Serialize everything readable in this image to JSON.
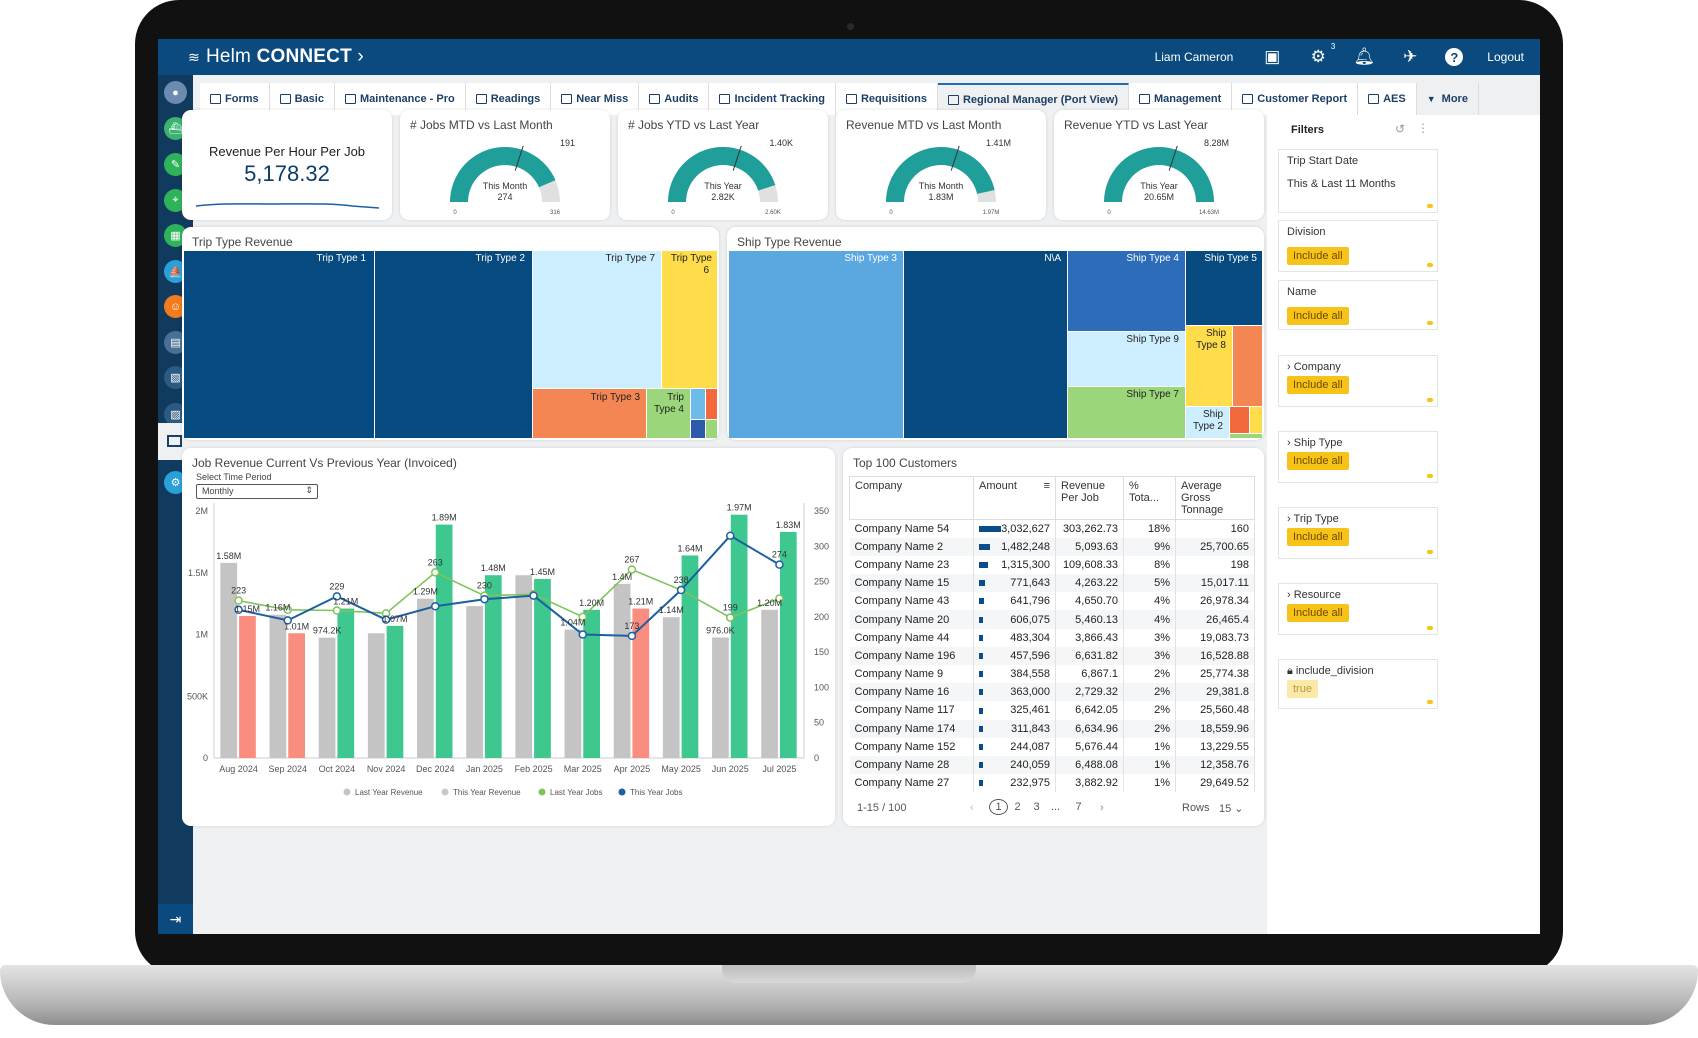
{
  "app": {
    "logo_prefix": "Helm",
    "logo_main": "CONNECT",
    "user": "Liam Cameron",
    "settings_badge": "3",
    "logout": "Logout"
  },
  "tabs": [
    {
      "label": "Forms"
    },
    {
      "label": "Basic"
    },
    {
      "label": "Maintenance - Pro"
    },
    {
      "label": "Readings"
    },
    {
      "label": "Near Miss"
    },
    {
      "label": "Audits"
    },
    {
      "label": "Incident Tracking"
    },
    {
      "label": "Requisitions"
    },
    {
      "label": "Regional Manager (Port View)"
    },
    {
      "label": "Management"
    },
    {
      "label": "Customer Report"
    },
    {
      "label": "AES"
    }
  ],
  "more_tab": "More",
  "kpi": {
    "title": "Revenue Per Hour Per Job",
    "value": "5,178.32"
  },
  "gauges": [
    {
      "title": "# Jobs MTD vs Last Month",
      "sub": "This Month",
      "value": "274",
      "target": "191",
      "min": "0",
      "max": "316",
      "fraction": 0.87
    },
    {
      "title": "# Jobs YTD vs Last Year",
      "sub": "This Year",
      "value": "2.82K",
      "target": "1.40K",
      "min": "0",
      "max": "2.60K",
      "fraction": 0.9
    },
    {
      "title": "Revenue MTD vs Last Month",
      "sub": "This Month",
      "value": "1.83M",
      "target": "1.41M",
      "min": "0",
      "max": "1.97M",
      "fraction": 0.93
    },
    {
      "title": "Revenue YTD vs Last Year",
      "sub": "This Year",
      "value": "20.65M",
      "target": "8.28M",
      "min": "0",
      "max": "14.63M",
      "fraction": 1.0
    }
  ],
  "trip_treemap": {
    "title": "Trip Type Revenue",
    "labels": [
      "Trip Type 1",
      "Trip Type 2",
      "Trip Type 7",
      "Trip Type",
      "6",
      "Trip Type 3",
      "Trip",
      "Type 4"
    ]
  },
  "ship_treemap": {
    "title": "Ship Type Revenue",
    "labels": [
      "Ship Type 3",
      "N\\A",
      "Ship Type 4",
      "Ship Type 5",
      "Ship Type 9",
      "Ship",
      "Type 8",
      "Ship Type 7",
      "Ship",
      "Type 2"
    ]
  },
  "job_chart": {
    "title": "Job Revenue Current Vs Previous Year (Invoiced)",
    "select_label": "Select Time Period",
    "select_value": "Monthly"
  },
  "chart_data": {
    "type": "bar",
    "categories": [
      "Aug 2024",
      "Sep 2024",
      "Oct 2024",
      "Nov 2024",
      "Dec 2024",
      "Jan 2025",
      "Feb 2025",
      "Mar 2025",
      "Apr 2025",
      "May 2025",
      "Jun 2025",
      "Jul 2025"
    ],
    "series": [
      {
        "name": "Last Year Revenue",
        "type": "bar",
        "axis": "left",
        "values": [
          1580000,
          1160000,
          974200,
          1010000,
          1290000,
          1230000,
          1480000,
          1040000,
          1410000,
          1140000,
          976000,
          1200000
        ]
      },
      {
        "name": "This Year Revenue",
        "type": "bar",
        "axis": "left",
        "values": [
          1150000,
          1010000,
          1210000,
          1070000,
          1890000,
          1480000,
          1450000,
          1200000,
          1210000,
          1640000,
          1970000,
          1830000
        ]
      },
      {
        "name": "Last Year Jobs",
        "type": "line",
        "axis": "right",
        "values": [
          223,
          210,
          209,
          205,
          263,
          230,
          232,
          200,
          267,
          238,
          199,
          226
        ]
      },
      {
        "name": "This Year Jobs",
        "type": "line",
        "axis": "right",
        "values": [
          210,
          195,
          229,
          196,
          215,
          225,
          230,
          175,
          173,
          238,
          315,
          274
        ]
      }
    ],
    "left_ticks": [
      "2M",
      "1.5M",
      "1M",
      "500K",
      "0"
    ],
    "right_ticks": [
      "350",
      "300",
      "250",
      "200",
      "150",
      "100",
      "50",
      "0"
    ],
    "ylim": [
      0,
      2000000
    ],
    "y2lim": [
      0,
      350
    ],
    "bar_labels": [
      {
        "series": 0,
        "i": 0,
        "text": "1.58M"
      },
      {
        "series": 1,
        "i": 0,
        "text": "1.15M"
      },
      {
        "series": 0,
        "i": 1,
        "text": "1.16M"
      },
      {
        "series": 1,
        "i": 1,
        "text": "1.01M"
      },
      {
        "series": 0,
        "i": 2,
        "text": "974.2K"
      },
      {
        "series": 1,
        "i": 2,
        "text": "1.21M"
      },
      {
        "series": 1,
        "i": 3,
        "text": "1.07M"
      },
      {
        "series": 0,
        "i": 4,
        "text": "1.29M"
      },
      {
        "series": 1,
        "i": 4,
        "text": "1.89M"
      },
      {
        "series": 1,
        "i": 5,
        "text": "1.48M"
      },
      {
        "series": 1,
        "i": 6,
        "text": "1.45M"
      },
      {
        "series": 0,
        "i": 7,
        "text": "1.04M"
      },
      {
        "series": 1,
        "i": 7,
        "text": "1.20M"
      },
      {
        "series": 0,
        "i": 8,
        "text": "1.4M"
      },
      {
        "series": 1,
        "i": 8,
        "text": "1.21M"
      },
      {
        "series": 0,
        "i": 9,
        "text": "1.14M"
      },
      {
        "series": 1,
        "i": 9,
        "text": "1.64M"
      },
      {
        "series": 0,
        "i": 10,
        "text": "976.0K"
      },
      {
        "series": 1,
        "i": 10,
        "text": "1.97M"
      },
      {
        "series": 0,
        "i": 11,
        "text": "1.20M"
      },
      {
        "series": 1,
        "i": 11,
        "text": "1.83M"
      }
    ],
    "point_labels": [
      {
        "series": 2,
        "i": 0,
        "text": "223"
      },
      {
        "series": 3,
        "i": 2,
        "text": "229"
      },
      {
        "series": 2,
        "i": 4,
        "text": "263"
      },
      {
        "series": 2,
        "i": 5,
        "text": "230"
      },
      {
        "series": 2,
        "i": 8,
        "text": "267"
      },
      {
        "series": 3,
        "i": 8,
        "text": "173"
      },
      {
        "series": 2,
        "i": 9,
        "text": "238"
      },
      {
        "series": 2,
        "i": 10,
        "text": "199"
      },
      {
        "series": 3,
        "i": 11,
        "text": "274"
      }
    ],
    "legend_position": "bottom",
    "colors": {
      "last_rev": "#c4c4c4",
      "this_rev": "#3ec78f",
      "this_rev_low": "#f98d7f",
      "last_jobs": "#7ec45a",
      "this_jobs": "#1d5fa0"
    }
  },
  "customers": {
    "title": "Top 100 Customers",
    "headers": [
      "Company",
      "Amount",
      "Revenue Per Job",
      "% Tota...",
      "Average Gross Tonnage"
    ],
    "rows": [
      [
        "Company Name 54",
        "3,032,627",
        "303,262.73",
        "18%",
        "160"
      ],
      [
        "Company Name 2",
        "1,482,248",
        "5,093.63",
        "9%",
        "25,700.65"
      ],
      [
        "Company Name 23",
        "1,315,300",
        "109,608.33",
        "8%",
        "198"
      ],
      [
        "Company Name 15",
        "771,643",
        "4,263.22",
        "5%",
        "15,017.11"
      ],
      [
        "Company Name 43",
        "641,796",
        "4,650.70",
        "4%",
        "26,978.34"
      ],
      [
        "Company Name 20",
        "606,075",
        "5,460.13",
        "4%",
        "26,465.4"
      ],
      [
        "Company Name 44",
        "483,304",
        "3,866.43",
        "3%",
        "19,083.73"
      ],
      [
        "Company Name 196",
        "457,596",
        "6,631.82",
        "3%",
        "16,528.88"
      ],
      [
        "Company Name 9",
        "384,558",
        "6,867.1",
        "2%",
        "25,774.38"
      ],
      [
        "Company Name 16",
        "363,000",
        "2,729.32",
        "2%",
        "29,381.8"
      ],
      [
        "Company Name 117",
        "325,461",
        "6,642.05",
        "2%",
        "25,560.48"
      ],
      [
        "Company Name 174",
        "311,843",
        "6,634.96",
        "2%",
        "18,559.96"
      ],
      [
        "Company Name 152",
        "244,087",
        "5,676.44",
        "1%",
        "13,229.55"
      ],
      [
        "Company Name 28",
        "240,059",
        "6,488.08",
        "1%",
        "12,358.76"
      ],
      [
        "Company Name 27",
        "232,975",
        "3,882.92",
        "1%",
        "29,649.52"
      ]
    ],
    "amount_fractions": [
      1,
      0.49,
      0.43,
      0.25,
      0.21,
      0.2,
      0.16,
      0.15,
      0.13,
      0.12,
      0.11,
      0.1,
      0.08,
      0.08,
      0.08
    ],
    "range": "1-15 / 100",
    "pages": [
      "1",
      "2",
      "3",
      "...",
      "7"
    ],
    "rows_label": "Rows",
    "rows_value": "15"
  },
  "filters": {
    "title": "Filters",
    "items": [
      {
        "label": "Trip Start Date",
        "value": "This & Last 11 Months"
      },
      {
        "label": "Division",
        "value": "Include all"
      },
      {
        "label": "Name",
        "value": "Include all"
      },
      {
        "label": "Company",
        "value": "Include all"
      },
      {
        "label": "Ship Type",
        "value": "Include all"
      },
      {
        "label": "Trip Type",
        "value": "Include all"
      },
      {
        "label": "Resource",
        "value": "Include all"
      },
      {
        "label": "include_division",
        "value": "true"
      }
    ]
  }
}
